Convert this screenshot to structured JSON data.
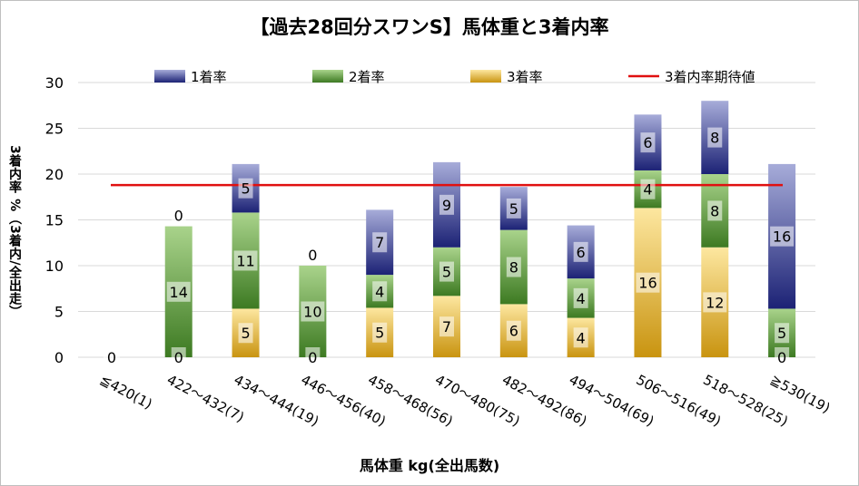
{
  "chart_data": {
    "type": "bar",
    "stacked": true,
    "title": "【過去28回分スワンS】馬体重と3着内率",
    "xlabel": "馬体重 kg(全出馬数)",
    "ylabel": "3着内率 %（3着内/全出走）",
    "ylim": [
      0,
      30
    ],
    "yticks": [
      0,
      5,
      10,
      15,
      20,
      25,
      30
    ],
    "grid": true,
    "legend_position": "top",
    "categories": [
      "≦420(1)",
      "422～432(7)",
      "434～444(19)",
      "446～456(40)",
      "458～468(56)",
      "470～480(75)",
      "482～492(86)",
      "494～504(69)",
      "506～516(49)",
      "518～528(25)",
      "≧530(19)"
    ],
    "series": [
      {
        "name": "3着率",
        "color": "#e6b020",
        "values": [
          0,
          0,
          5.3,
          0,
          5.4,
          6.7,
          5.8,
          4.3,
          16.3,
          12,
          0
        ],
        "labels": [
          "",
          "0",
          "5",
          "0",
          "5",
          "7",
          "6",
          "4",
          "16",
          "12",
          "0"
        ]
      },
      {
        "name": "2着率",
        "color": "#4e8a2e",
        "values": [
          0,
          14.3,
          10.5,
          10,
          3.6,
          5.3,
          8.1,
          4.3,
          4.1,
          8,
          5.3
        ],
        "labels": [
          "",
          "14",
          "11",
          "10",
          "4",
          "5",
          "8",
          "4",
          "4",
          "8",
          "5"
        ]
      },
      {
        "name": "1着率",
        "color": "#2e3590",
        "values": [
          0,
          0,
          5.3,
          0,
          7.1,
          9.3,
          4.7,
          5.8,
          6.1,
          8,
          15.8
        ],
        "labels": [
          "",
          "0",
          "5",
          "0",
          "7",
          "9",
          "5",
          "6",
          "6",
          "8",
          "16"
        ]
      }
    ],
    "zero_label": "0",
    "reference_line": {
      "name": "3着内率期待値",
      "value": 18.8,
      "color": "#e01010"
    }
  }
}
